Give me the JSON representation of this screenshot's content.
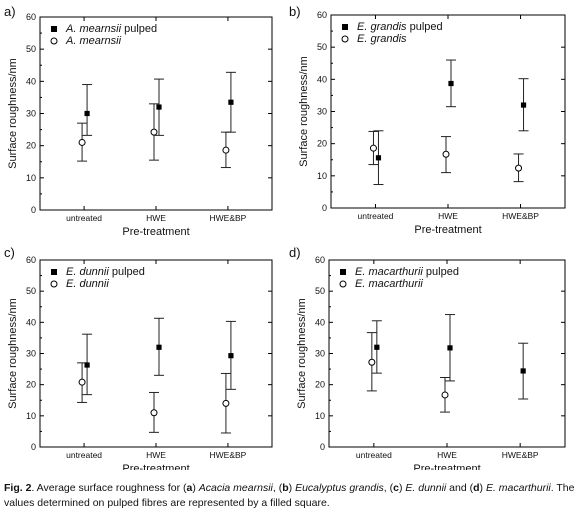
{
  "chart_data": [
    {
      "type": "scatter",
      "panel_label": "a)",
      "xlabel": "Pre-treatment",
      "ylabel": "Surface roughness/nm",
      "categories": [
        "untreated",
        "HWE",
        "HWE&BP"
      ],
      "ylim": [
        0,
        60
      ],
      "yticks": [
        0,
        10,
        20,
        30,
        40,
        50,
        60
      ],
      "legend_position": "top-left",
      "series": [
        {
          "name": "A. mearnsii pulped",
          "marker": "filled-square",
          "values": [
            30.0,
            32.0,
            33.5
          ],
          "err_low": [
            23.2,
            23.2,
            24.2
          ],
          "err_high": [
            39.0,
            40.7,
            42.8
          ]
        },
        {
          "name": "A. mearnsii",
          "marker": "open-circle",
          "values": [
            21.0,
            24.2,
            18.6
          ],
          "err_low": [
            15.2,
            15.5,
            13.2
          ],
          "err_high": [
            27.0,
            33.0,
            24.2
          ]
        }
      ]
    },
    {
      "type": "scatter",
      "panel_label": "b)",
      "xlabel": "Pre-treatment",
      "ylabel": "Surface roughness/nm",
      "categories": [
        "untreated",
        "HWE",
        "HWE&BP"
      ],
      "ylim": [
        0,
        60
      ],
      "yticks": [
        0,
        10,
        20,
        30,
        40,
        50,
        60
      ],
      "legend_position": "top-left",
      "series": [
        {
          "name": "E. grandis pulped",
          "marker": "filled-square",
          "values": [
            15.6,
            38.7,
            32.0
          ],
          "err_low": [
            7.3,
            31.5,
            24.0
          ],
          "err_high": [
            24.0,
            46.0,
            40.2
          ]
        },
        {
          "name": "E. grandis",
          "marker": "open-circle",
          "values": [
            18.6,
            16.7,
            12.4
          ],
          "err_low": [
            13.5,
            11.0,
            8.2
          ],
          "err_high": [
            23.8,
            22.2,
            16.8
          ]
        }
      ]
    },
    {
      "type": "scatter",
      "panel_label": "c)",
      "xlabel": "Pre-treatment",
      "ylabel": "Surface roughness/nm",
      "categories": [
        "untreated",
        "HWE",
        "HWE&BP"
      ],
      "ylim": [
        0,
        60
      ],
      "yticks": [
        0,
        10,
        20,
        30,
        40,
        50,
        60
      ],
      "legend_position": "top-left",
      "series": [
        {
          "name": "E. dunnii pulped",
          "marker": "filled-square",
          "values": [
            26.3,
            32.0,
            29.3
          ],
          "err_low": [
            16.8,
            23.0,
            18.5
          ],
          "err_high": [
            36.2,
            41.3,
            40.3
          ]
        },
        {
          "name": "E. dunnii",
          "marker": "open-circle",
          "values": [
            20.8,
            11.0,
            14.0
          ],
          "err_low": [
            14.3,
            4.7,
            4.5
          ],
          "err_high": [
            27.0,
            17.5,
            23.6
          ]
        }
      ]
    },
    {
      "type": "scatter",
      "panel_label": "d)",
      "xlabel": "Pre-treatment",
      "ylabel": "Surface roughness/nm",
      "categories": [
        "untreated",
        "HWE",
        "HWE&BP"
      ],
      "ylim": [
        0,
        60
      ],
      "yticks": [
        0,
        10,
        20,
        30,
        40,
        50,
        60
      ],
      "legend_position": "top-left",
      "series": [
        {
          "name": "E. macarthurii pulped",
          "marker": "filled-square",
          "values": [
            32.0,
            31.8,
            24.4
          ],
          "err_low": [
            23.7,
            21.2,
            15.4
          ],
          "err_high": [
            40.5,
            42.5,
            33.3
          ]
        },
        {
          "name": "E. macarthurii",
          "marker": "open-circle",
          "values": [
            27.2,
            16.7,
            null
          ],
          "err_low": [
            18.0,
            11.2,
            null
          ],
          "err_high": [
            36.7,
            22.3,
            null
          ]
        }
      ]
    }
  ],
  "caption": {
    "fig": "Fig. 2",
    "intro": ". Average surface roughness for (",
    "a_letter": "a",
    "a_after": ") ",
    "a_species": "Acacia mearnsii",
    "b_before": ", (",
    "b_letter": "b",
    "b_after": ") ",
    "b_species": "Eucalyptus grandis",
    "c_before": ", (",
    "c_letter": "c",
    "c_after": ") ",
    "c_species": "E. dunnii",
    "d_before": " and (",
    "d_letter": "d",
    "d_after": ") ",
    "d_species": "E. macarthurii",
    "end": ". The values determined on pulped fibres are represented by a filled square."
  }
}
